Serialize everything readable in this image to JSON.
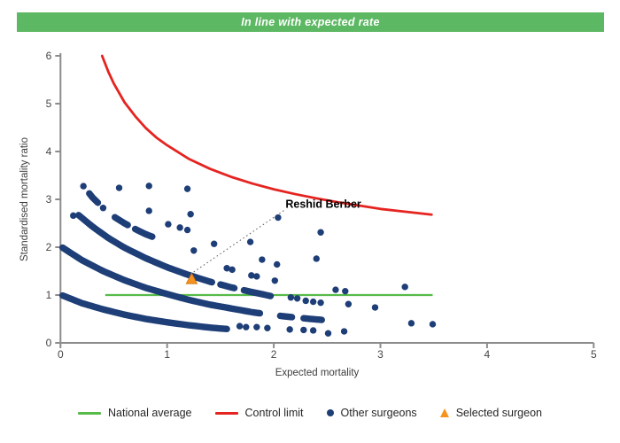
{
  "banner": {
    "title": "In line with expected rate",
    "background": "#5db863",
    "text_color": "#ffffff"
  },
  "chart_data": {
    "type": "scatter",
    "title": "",
    "xlabel": "Expected mortality",
    "ylabel": "Standardised mortality ratio",
    "xlim": [
      0,
      5
    ],
    "ylim": [
      0,
      6
    ],
    "x_ticks": [
      0,
      1,
      2,
      3,
      4,
      5
    ],
    "y_ticks": [
      0,
      1,
      2,
      3,
      4,
      5,
      6
    ],
    "grid": false,
    "axis_color": "#8c8c8c",
    "national_average": {
      "label": "National average",
      "y": 1,
      "x_start": 0.42,
      "x_end": 3.49,
      "color": "#57bb4a"
    },
    "control_limit": {
      "label": "Control limit",
      "color": "#e52420",
      "formula": "y = 1 + 3.125/sqrt(x), clipped at y = 6",
      "points": [
        [
          0.39,
          6.0
        ],
        [
          0.45,
          5.66
        ],
        [
          0.5,
          5.42
        ],
        [
          0.6,
          5.03
        ],
        [
          0.7,
          4.74
        ],
        [
          0.8,
          4.49
        ],
        [
          0.9,
          4.29
        ],
        [
          1.0,
          4.13
        ],
        [
          1.2,
          3.85
        ],
        [
          1.4,
          3.64
        ],
        [
          1.6,
          3.47
        ],
        [
          1.8,
          3.33
        ],
        [
          2.0,
          3.21
        ],
        [
          2.2,
          3.11
        ],
        [
          2.4,
          3.02
        ],
        [
          2.6,
          2.94
        ],
        [
          2.8,
          2.87
        ],
        [
          3.0,
          2.8
        ],
        [
          3.2,
          2.75
        ],
        [
          3.48,
          2.68
        ]
      ]
    },
    "selected_surgeon": {
      "label": "Selected surgeon",
      "name": "Reshid Berber",
      "point": [
        1.23,
        1.33
      ],
      "color": "#f6921e",
      "border_color": "#d4780f"
    },
    "annotation": {
      "label": "Reshid Berber",
      "target": [
        1.23,
        1.33
      ],
      "label_anchor": [
        2.11,
        2.82
      ]
    },
    "other_surgeons": {
      "label": "Other surgeons",
      "color": "#1e3e77",
      "scatter_points": [
        [
          0.12,
          2.66
        ],
        [
          0.55,
          3.24
        ],
        [
          0.83,
          3.28
        ],
        [
          1.19,
          3.22
        ],
        [
          0.83,
          2.76
        ],
        [
          1.22,
          2.69
        ],
        [
          1.01,
          2.48
        ],
        [
          1.12,
          2.41
        ],
        [
          1.19,
          2.36
        ],
        [
          1.44,
          2.07
        ],
        [
          1.25,
          1.93
        ],
        [
          1.56,
          1.56
        ],
        [
          1.61,
          1.53
        ],
        [
          1.79,
          1.41
        ],
        [
          1.84,
          1.39
        ],
        [
          1.78,
          2.11
        ],
        [
          2.04,
          2.62
        ],
        [
          2.44,
          2.31
        ],
        [
          1.89,
          1.74
        ],
        [
          2.03,
          1.64
        ],
        [
          2.4,
          1.76
        ],
        [
          2.01,
          1.3
        ],
        [
          2.16,
          0.95
        ],
        [
          2.22,
          0.93
        ],
        [
          2.3,
          0.88
        ],
        [
          2.37,
          0.86
        ],
        [
          2.44,
          0.84
        ],
        [
          2.58,
          1.11
        ],
        [
          2.67,
          1.08
        ],
        [
          2.7,
          0.81
        ],
        [
          2.95,
          0.74
        ],
        [
          3.23,
          1.17
        ],
        [
          3.29,
          0.41
        ],
        [
          3.49,
          0.39
        ],
        [
          2.15,
          0.28
        ],
        [
          2.28,
          0.27
        ],
        [
          2.37,
          0.26
        ],
        [
          2.51,
          0.2
        ],
        [
          2.66,
          0.24
        ],
        [
          1.68,
          0.35
        ],
        [
          1.74,
          0.33
        ],
        [
          1.84,
          0.33
        ],
        [
          1.94,
          0.31
        ]
      ],
      "dense_bands": [
        {
          "name": "band-0",
          "curve": [
            [
              0.21,
              3.29
            ],
            [
              0.3,
              3.04
            ],
            [
              0.4,
              2.82
            ],
            [
              0.5,
              2.64
            ],
            [
              0.6,
              2.5
            ],
            [
              0.7,
              2.38
            ],
            [
              0.8,
              2.27
            ],
            [
              0.86,
              2.22
            ]
          ],
          "segments": [
            [
              0.21,
              0.22
            ],
            [
              0.27,
              0.35
            ],
            [
              0.39,
              0.41
            ],
            [
              0.51,
              0.63
            ],
            [
              0.7,
              0.86
            ]
          ]
        },
        {
          "name": "band-A",
          "curve": [
            [
              0.17,
              2.67
            ],
            [
              0.3,
              2.43
            ],
            [
              0.45,
              2.19
            ],
            [
              0.6,
              1.99
            ],
            [
              0.8,
              1.77
            ],
            [
              1.0,
              1.58
            ],
            [
              1.2,
              1.42
            ],
            [
              1.4,
              1.28
            ],
            [
              1.6,
              1.16
            ],
            [
              1.8,
              1.06
            ],
            [
              1.97,
              0.98
            ]
          ],
          "segments": [
            [
              0.17,
              1.42
            ],
            [
              1.5,
              1.63
            ],
            [
              1.72,
              1.97
            ]
          ]
        },
        {
          "name": "band-B",
          "curve": [
            [
              0.02,
              1.99
            ],
            [
              0.2,
              1.73
            ],
            [
              0.4,
              1.5
            ],
            [
              0.6,
              1.31
            ],
            [
              0.8,
              1.15
            ],
            [
              1.0,
              1.02
            ],
            [
              1.2,
              0.9
            ],
            [
              1.4,
              0.8
            ],
            [
              1.6,
              0.72
            ],
            [
              1.8,
              0.64
            ],
            [
              2.0,
              0.58
            ],
            [
              2.2,
              0.53
            ],
            [
              2.45,
              0.48
            ]
          ],
          "segments": [
            [
              0.02,
              1.78
            ],
            [
              1.8,
              1.87
            ],
            [
              2.06,
              2.17
            ],
            [
              2.28,
              2.45
            ]
          ]
        },
        {
          "name": "band-C",
          "curve": [
            [
              0.02,
              0.99
            ],
            [
              0.2,
              0.83
            ],
            [
              0.4,
              0.7
            ],
            [
              0.6,
              0.59
            ],
            [
              0.8,
              0.5
            ],
            [
              1.0,
              0.43
            ],
            [
              1.2,
              0.37
            ],
            [
              1.4,
              0.32
            ],
            [
              1.56,
              0.29
            ]
          ],
          "segments": [
            [
              0.02,
              1.56
            ]
          ]
        }
      ]
    }
  },
  "legend": {
    "items": [
      {
        "label": "National average",
        "swatch": "line",
        "color": "#57bb4a"
      },
      {
        "label": "Control limit",
        "swatch": "line",
        "color": "#e52420"
      },
      {
        "label": "Other surgeons",
        "swatch": "dot",
        "color": "#1e3e77"
      },
      {
        "label": "Selected surgeon",
        "swatch": "triangle",
        "color": "#f6921e"
      }
    ]
  }
}
